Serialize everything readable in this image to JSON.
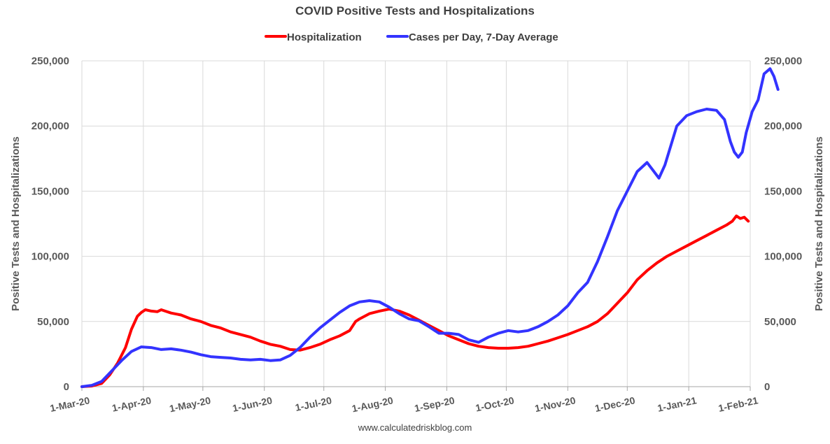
{
  "chart_data": {
    "type": "line",
    "title": "COVID Positive Tests and Hospitalizations",
    "ylabel_left": "Positive Tests and Hospitalizations",
    "ylabel_right": "Positive Tests and Hospitalizations",
    "ylim": [
      0,
      250000
    ],
    "yticks": [
      0,
      50000,
      100000,
      150000,
      200000,
      250000
    ],
    "ytick_labels": [
      "0",
      "50,000",
      "100,000",
      "150,000",
      "200,000",
      "250,000"
    ],
    "xlim_days": [
      0,
      337
    ],
    "xticks": [
      {
        "day": 0,
        "label": "1-Mar-20"
      },
      {
        "day": 31,
        "label": "1-Apr-20"
      },
      {
        "day": 61,
        "label": "1-May-20"
      },
      {
        "day": 92,
        "label": "1-Jun-20"
      },
      {
        "day": 122,
        "label": "1-Jul-20"
      },
      {
        "day": 153,
        "label": "1-Aug-20"
      },
      {
        "day": 184,
        "label": "1-Sep-20"
      },
      {
        "day": 214,
        "label": "1-Oct-20"
      },
      {
        "day": 245,
        "label": "1-Nov-20"
      },
      {
        "day": 275,
        "label": "1-Dec-20"
      },
      {
        "day": 306,
        "label": "1-Jan-21"
      },
      {
        "day": 337,
        "label": "1-Feb-21"
      }
    ],
    "grid": true,
    "legend_position": "top-center",
    "source_text": "www.calculatedriskblog.com",
    "series": [
      {
        "name": "Hospitalization",
        "color": "#ff0000",
        "points": [
          [
            0,
            0
          ],
          [
            5,
            500
          ],
          [
            10,
            2500
          ],
          [
            14,
            9000
          ],
          [
            18,
            18000
          ],
          [
            22,
            30000
          ],
          [
            25,
            44000
          ],
          [
            28,
            54000
          ],
          [
            30,
            57000
          ],
          [
            32,
            59000
          ],
          [
            35,
            58000
          ],
          [
            38,
            57500
          ],
          [
            40,
            59000
          ],
          [
            42,
            58000
          ],
          [
            45,
            56500
          ],
          [
            50,
            55000
          ],
          [
            55,
            52000
          ],
          [
            60,
            50000
          ],
          [
            65,
            47000
          ],
          [
            70,
            45000
          ],
          [
            75,
            42000
          ],
          [
            80,
            40000
          ],
          [
            85,
            38000
          ],
          [
            90,
            35000
          ],
          [
            95,
            32500
          ],
          [
            100,
            31000
          ],
          [
            105,
            28500
          ],
          [
            110,
            28000
          ],
          [
            115,
            30000
          ],
          [
            120,
            32500
          ],
          [
            125,
            36000
          ],
          [
            130,
            39000
          ],
          [
            135,
            43000
          ],
          [
            138,
            50000
          ],
          [
            140,
            52000
          ],
          [
            145,
            56000
          ],
          [
            150,
            58000
          ],
          [
            155,
            59500
          ],
          [
            160,
            58000
          ],
          [
            165,
            55000
          ],
          [
            170,
            51000
          ],
          [
            175,
            47000
          ],
          [
            180,
            43000
          ],
          [
            185,
            39000
          ],
          [
            190,
            36000
          ],
          [
            195,
            33000
          ],
          [
            200,
            31000
          ],
          [
            205,
            30000
          ],
          [
            210,
            29500
          ],
          [
            215,
            29500
          ],
          [
            220,
            30000
          ],
          [
            225,
            31000
          ],
          [
            230,
            33000
          ],
          [
            235,
            35000
          ],
          [
            240,
            37500
          ],
          [
            245,
            40000
          ],
          [
            250,
            43000
          ],
          [
            255,
            46000
          ],
          [
            260,
            50000
          ],
          [
            265,
            56000
          ],
          [
            270,
            64000
          ],
          [
            275,
            72000
          ],
          [
            280,
            82000
          ],
          [
            285,
            89000
          ],
          [
            290,
            95000
          ],
          [
            295,
            100000
          ],
          [
            300,
            104000
          ],
          [
            305,
            108000
          ],
          [
            310,
            112000
          ],
          [
            315,
            116000
          ],
          [
            320,
            120000
          ],
          [
            325,
            124000
          ],
          [
            328,
            127000
          ],
          [
            330,
            131000
          ],
          [
            332,
            129000
          ],
          [
            334,
            130000
          ],
          [
            336,
            127000
          ]
        ]
      },
      {
        "name": "Cases per Day, 7-Day Average",
        "color": "#3333ff",
        "points": [
          [
            0,
            0
          ],
          [
            5,
            1000
          ],
          [
            10,
            4000
          ],
          [
            15,
            12000
          ],
          [
            20,
            20000
          ],
          [
            25,
            27000
          ],
          [
            30,
            30500
          ],
          [
            35,
            30000
          ],
          [
            40,
            28500
          ],
          [
            45,
            29000
          ],
          [
            50,
            28000
          ],
          [
            55,
            26500
          ],
          [
            60,
            24500
          ],
          [
            65,
            23000
          ],
          [
            70,
            22500
          ],
          [
            75,
            22000
          ],
          [
            80,
            21000
          ],
          [
            85,
            20500
          ],
          [
            90,
            21000
          ],
          [
            95,
            20000
          ],
          [
            100,
            20500
          ],
          [
            105,
            24000
          ],
          [
            110,
            30000
          ],
          [
            115,
            38000
          ],
          [
            120,
            45000
          ],
          [
            125,
            51000
          ],
          [
            130,
            57000
          ],
          [
            135,
            62000
          ],
          [
            140,
            65000
          ],
          [
            145,
            66000
          ],
          [
            150,
            65000
          ],
          [
            155,
            61000
          ],
          [
            160,
            56000
          ],
          [
            165,
            52000
          ],
          [
            170,
            50500
          ],
          [
            175,
            46000
          ],
          [
            180,
            41000
          ],
          [
            185,
            41000
          ],
          [
            190,
            40000
          ],
          [
            195,
            36000
          ],
          [
            200,
            34000
          ],
          [
            205,
            38000
          ],
          [
            210,
            41000
          ],
          [
            215,
            43000
          ],
          [
            220,
            42000
          ],
          [
            225,
            43000
          ],
          [
            230,
            46000
          ],
          [
            235,
            50000
          ],
          [
            240,
            55000
          ],
          [
            245,
            62000
          ],
          [
            250,
            72000
          ],
          [
            255,
            80000
          ],
          [
            260,
            96000
          ],
          [
            265,
            115000
          ],
          [
            270,
            135000
          ],
          [
            275,
            150000
          ],
          [
            280,
            165000
          ],
          [
            285,
            172000
          ],
          [
            288,
            166000
          ],
          [
            291,
            160000
          ],
          [
            294,
            170000
          ],
          [
            297,
            185000
          ],
          [
            300,
            200000
          ],
          [
            305,
            208000
          ],
          [
            310,
            211000
          ],
          [
            315,
            213000
          ],
          [
            320,
            212000
          ],
          [
            324,
            205000
          ],
          [
            327,
            188000
          ],
          [
            329,
            180000
          ],
          [
            331,
            176000
          ],
          [
            333,
            180000
          ],
          [
            335,
            195000
          ],
          [
            338,
            211000
          ],
          [
            341,
            220000
          ],
          [
            344,
            240000
          ],
          [
            347,
            244000
          ],
          [
            349,
            238000
          ],
          [
            351,
            228000
          ]
        ]
      }
    ]
  }
}
